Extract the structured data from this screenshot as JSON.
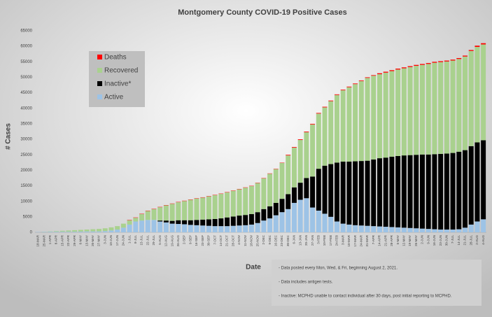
{
  "chart_data": {
    "type": "stacked_bar",
    "title": "Montgomery County COVID-19 Positive Cases",
    "x_label": "Date",
    "y_label": "# Cases",
    "categories": [
      "18-MAR",
      "25-MAR",
      "1-APR",
      "8-APR",
      "15-APR",
      "22-APR",
      "29-APR",
      "6-MAY",
      "13-MAY",
      "20-MAY",
      "27-MAY",
      "3-JUN",
      "10-JUN",
      "17-JUN",
      "24-JUN",
      "1-JUL",
      "8-JUL",
      "15-JUL",
      "22-JUL",
      "29-JUL",
      "5-AUG",
      "12-AUG",
      "19-AUG",
      "26-AUG",
      "2-SEP",
      "9-SEP",
      "16-SEP",
      "23-SEP",
      "30-SEP",
      "7-OCT",
      "14-OCT",
      "21-OCT",
      "28-OCT",
      "4-NOV",
      "11-NOV",
      "18-NOV",
      "25-NOV",
      "2-DEC",
      "9-DEC",
      "16-DEC",
      "23-DEC",
      "30-DEC",
      "6-JAN",
      "13-JAN",
      "20-JAN",
      "27-JAN",
      "3-FEB",
      "10-FEB",
      "17-FEB",
      "24-FEB",
      "3-MAR",
      "10-MAR",
      "17-MAR",
      "24-MAR",
      "31-MAR",
      "7-APR",
      "14-APR",
      "21-APR",
      "28-APR",
      "5-MAY",
      "12-MAY",
      "19-MAY",
      "26-MAY",
      "2-JUN",
      "9-JUN",
      "16-JUN",
      "23-JUN",
      "30-JUN",
      "7-JUL",
      "14-JUL",
      "21-JUL",
      "28-JUL",
      "2-AUG",
      "4-AUG"
    ],
    "series": [
      {
        "name": "Active",
        "color": "#9dc3e6",
        "values": [
          100,
          150,
          200,
          200,
          200,
          200,
          200,
          250,
          300,
          300,
          300,
          400,
          600,
          900,
          1500,
          2500,
          3500,
          3800,
          4000,
          4000,
          3500,
          3200,
          2800,
          2700,
          2600,
          2400,
          2300,
          2200,
          2100,
          2000,
          2000,
          2000,
          2100,
          2200,
          2300,
          2500,
          3000,
          3800,
          4500,
          5500,
          6500,
          7500,
          9500,
          10500,
          11000,
          8000,
          7000,
          6000,
          5000,
          3500,
          2800,
          2500,
          2300,
          2200,
          2100,
          2000,
          1900,
          1800,
          1700,
          1600,
          1500,
          1400,
          1300,
          1200,
          1100,
          1000,
          900,
          900,
          900,
          1000,
          1500,
          2500,
          3500,
          4200
        ]
      },
      {
        "name": "Inactive*",
        "color": "#000000",
        "values": [
          0,
          0,
          0,
          0,
          0,
          0,
          0,
          0,
          0,
          0,
          0,
          0,
          0,
          0,
          0,
          0,
          0,
          0,
          0,
          0,
          300,
          600,
          900,
          1200,
          1300,
          1500,
          1700,
          1900,
          2100,
          2300,
          2500,
          2800,
          3000,
          3200,
          3300,
          3400,
          3500,
          3700,
          3900,
          4000,
          4300,
          4800,
          5000,
          5500,
          6500,
          10000,
          13500,
          15500,
          17000,
          19000,
          20000,
          20300,
          20600,
          20800,
          21000,
          21500,
          22000,
          22300,
          22700,
          23000,
          23300,
          23500,
          23700,
          23900,
          24000,
          24200,
          24400,
          24500,
          24700,
          25000,
          25000,
          25300,
          25500,
          25500
        ]
      },
      {
        "name": "Recovered",
        "color": "#a9d18e",
        "values": [
          0,
          50,
          100,
          200,
          300,
          400,
          500,
          550,
          600,
          700,
          800,
          900,
          1000,
          1100,
          1300,
          1400,
          1200,
          2100,
          2900,
          3500,
          4300,
          4900,
          5500,
          5800,
          6200,
          6600,
          6900,
          7100,
          7400,
          7700,
          7900,
          8100,
          8300,
          8500,
          8800,
          9000,
          9400,
          9900,
          10500,
          10900,
          11600,
          12500,
          12800,
          13800,
          14800,
          16800,
          17800,
          18800,
          20300,
          21800,
          23000,
          24000,
          24900,
          25800,
          26700,
          27000,
          27100,
          27400,
          27600,
          27900,
          28100,
          28400,
          28700,
          28900,
          29200,
          29500,
          29600,
          29700,
          29800,
          29900,
          30200,
          30700,
          30800,
          30900
        ]
      },
      {
        "name": "Deaths",
        "color": "#ff0000",
        "values": [
          0,
          0,
          0,
          0,
          0,
          0,
          0,
          0,
          0,
          0,
          0,
          0,
          0,
          0,
          0,
          100,
          100,
          100,
          100,
          100,
          100,
          100,
          100,
          100,
          100,
          100,
          100,
          100,
          100,
          100,
          100,
          100,
          100,
          100,
          100,
          100,
          100,
          100,
          100,
          100,
          100,
          200,
          200,
          200,
          200,
          200,
          200,
          200,
          200,
          200,
          200,
          200,
          200,
          200,
          200,
          200,
          300,
          300,
          300,
          300,
          300,
          300,
          300,
          300,
          300,
          300,
          300,
          300,
          300,
          300,
          300,
          300,
          400,
          400
        ]
      }
    ],
    "ylim": [
      0,
      65000
    ],
    "yticks": [
      0,
      5000,
      10000,
      15000,
      20000,
      25000,
      30000,
      35000,
      40000,
      45000,
      50000,
      55000,
      60000,
      65000
    ],
    "notes": [
      "- Data posted every Mon, Wed, & Fri, beginning August 2, 2021.",
      "- Data includes antigen tests.",
      "- Inactive: MCPHD unable to contact individual after 30 days, post initial reporting to MCPHD."
    ]
  }
}
